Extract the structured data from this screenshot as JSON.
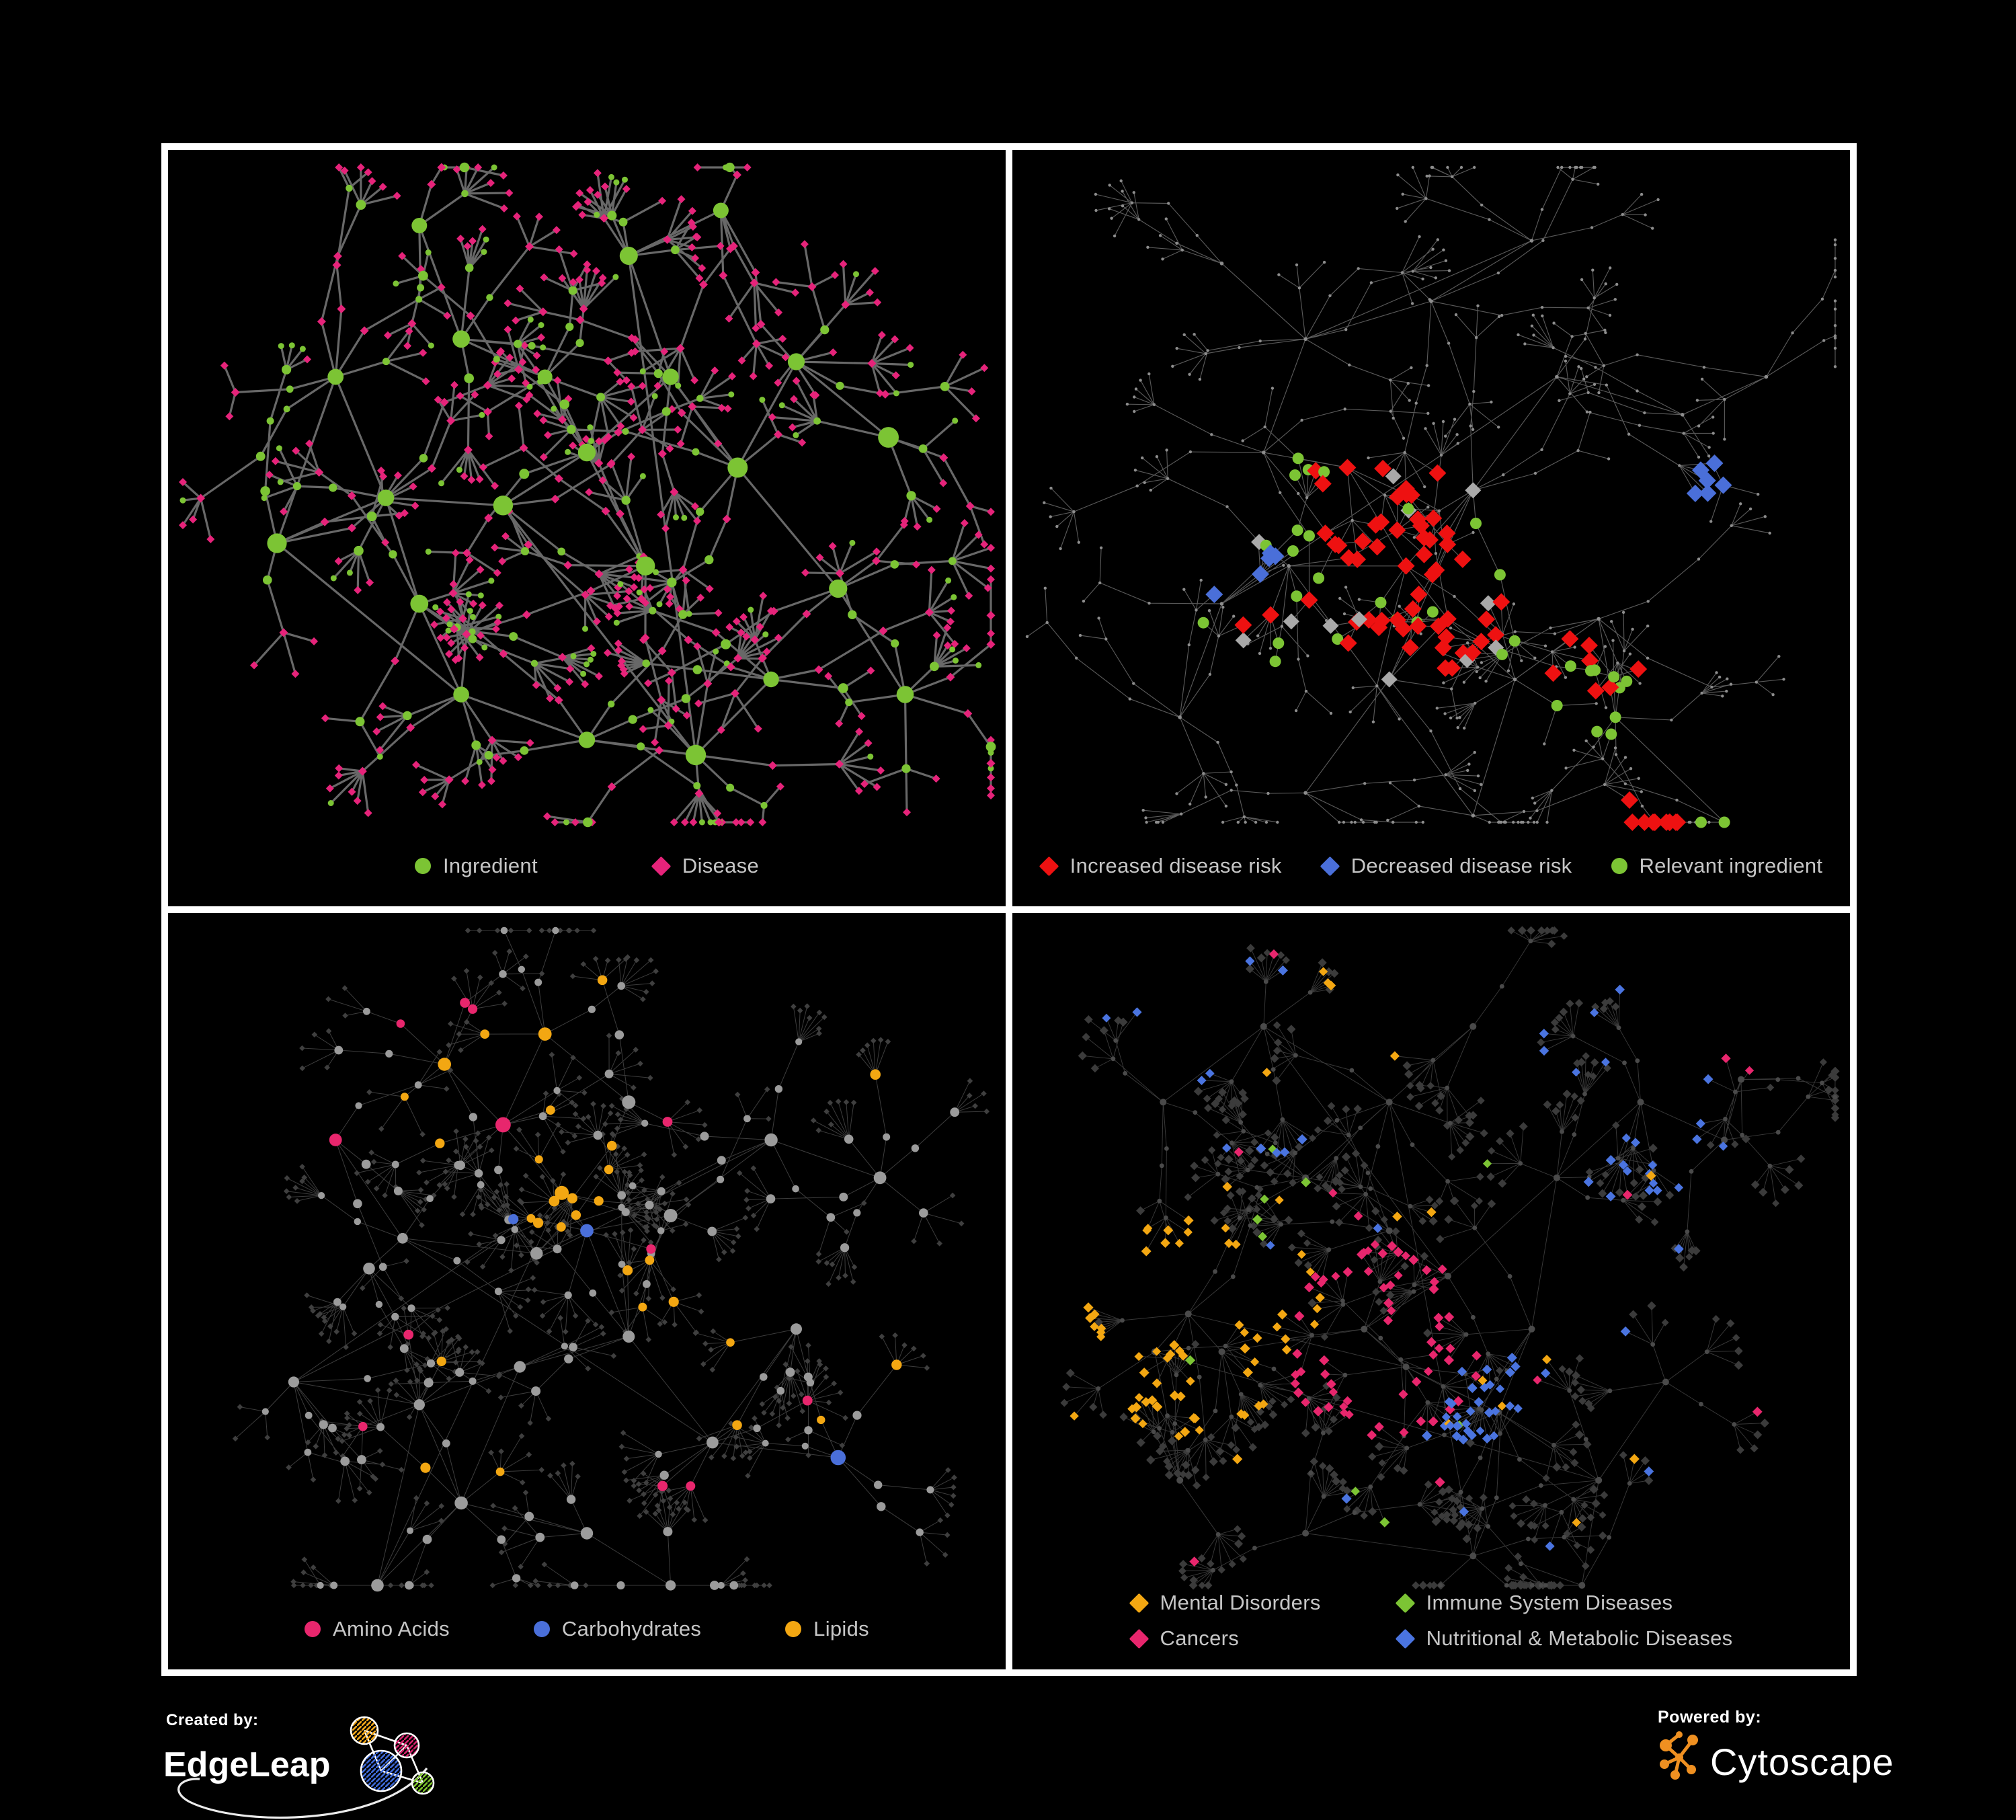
{
  "page": {
    "background": "#000000",
    "panel_border": "#ffffff",
    "legend_text_color": "#c6c6c6"
  },
  "panels": [
    {
      "id": "ingredient-disease",
      "legend": [
        {
          "label": "Ingredient",
          "shape": "circle",
          "color": "#7cc434"
        },
        {
          "label": "Disease",
          "shape": "diamond",
          "color": "#e6237a"
        }
      ],
      "net": {
        "seed": 11,
        "theme": "p1",
        "extra": 5,
        "branches": [
          3,
          6
        ],
        "steps": [
          1,
          3
        ],
        "fan": [
          2,
          7
        ],
        "stepLen": [
          50,
          120
        ],
        "leafLen": [
          32,
          68
        ],
        "hubs": [
          [
            0.26,
            0.46
          ],
          [
            0.4,
            0.47
          ],
          [
            0.5,
            0.4
          ],
          [
            0.57,
            0.55
          ],
          [
            0.45,
            0.3
          ],
          [
            0.35,
            0.25
          ],
          [
            0.6,
            0.3
          ],
          [
            0.68,
            0.42
          ],
          [
            0.3,
            0.6
          ],
          [
            0.35,
            0.72
          ],
          [
            0.5,
            0.78
          ],
          [
            0.63,
            0.8
          ],
          [
            0.2,
            0.3
          ],
          [
            0.13,
            0.52
          ],
          [
            0.75,
            0.28
          ],
          [
            0.86,
            0.38
          ],
          [
            0.8,
            0.58
          ],
          [
            0.72,
            0.7
          ],
          [
            0.55,
            0.14
          ],
          [
            0.3,
            0.1
          ],
          [
            0.66,
            0.08
          ],
          [
            0.88,
            0.72
          ]
        ],
        "style": {
          "edge": "#7a7a7a",
          "edgeW": 3.2,
          "edgeOp": 0.85,
          "circle": "#7cc434",
          "diamond": "#e6237a"
        },
        "highlights": []
      }
    },
    {
      "id": "disease-risk",
      "legend": [
        {
          "label": "Increased disease risk",
          "shape": "diamond",
          "color": "#ee1111"
        },
        {
          "label": "Decreased disease risk",
          "shape": "diamond",
          "color": "#4a6fd9"
        },
        {
          "label": "Relevant ingredient",
          "shape": "circle",
          "color": "#7cc434"
        }
      ],
      "net": {
        "seed": 23,
        "theme": "p2",
        "extra": 5,
        "branches": [
          3,
          6
        ],
        "steps": [
          1,
          3
        ],
        "fan": [
          2,
          6
        ],
        "stepLen": [
          45,
          110
        ],
        "leafLen": [
          30,
          60
        ],
        "hubs": [
          [
            0.33,
            0.55
          ],
          [
            0.47,
            0.55
          ],
          [
            0.52,
            0.62
          ],
          [
            0.4,
            0.42
          ],
          [
            0.55,
            0.45
          ],
          [
            0.3,
            0.4
          ],
          [
            0.25,
            0.6
          ],
          [
            0.45,
            0.7
          ],
          [
            0.6,
            0.7
          ],
          [
            0.7,
            0.62
          ],
          [
            0.72,
            0.75
          ],
          [
            0.35,
            0.25
          ],
          [
            0.5,
            0.2
          ],
          [
            0.65,
            0.3
          ],
          [
            0.8,
            0.35
          ],
          [
            0.9,
            0.3
          ],
          [
            0.2,
            0.75
          ],
          [
            0.35,
            0.85
          ],
          [
            0.55,
            0.88
          ],
          [
            0.85,
            0.9
          ],
          [
            0.62,
            0.12
          ],
          [
            0.25,
            0.15
          ]
        ],
        "style": {
          "edge": "#6f6f6f",
          "edgeW": 1.15,
          "edgeOp": 0.8,
          "base": "#8d8d8d"
        },
        "highlights": [
          {
            "shape": "diamond",
            "color": "#ee1111",
            "size": 13,
            "zones": [
              [
                0.47,
                0.56,
                0.13,
                0.45
              ],
              [
                0.3,
                0.56,
                0.07,
                0.3
              ],
              [
                0.71,
                0.62,
                0.1,
                0.28
              ],
              [
                0.73,
                0.92,
                0.07,
                0.45
              ],
              [
                0.39,
                0.42,
                0.03,
                0.8
              ]
            ]
          },
          {
            "shape": "diamond",
            "color": "#4a6fd9",
            "size": 13,
            "zones": [
              [
                0.285,
                0.58,
                0.05,
                0.75
              ],
              [
                0.83,
                0.44,
                0.028,
                1.0
              ]
            ]
          },
          {
            "shape": "diamond",
            "color": "#a9a9a9",
            "size": 12,
            "zones": [
              [
                0.5,
                0.62,
                0.24,
                0.05
              ],
              [
                0.3,
                0.62,
                0.12,
                0.08
              ]
            ]
          },
          {
            "shape": "circle",
            "color": "#7cc434",
            "size": 8.5,
            "zones": [
              [
                0.33,
                0.55,
                0.13,
                0.28
              ],
              [
                0.52,
                0.57,
                0.12,
                0.28
              ],
              [
                0.7,
                0.72,
                0.06,
                0.5
              ],
              [
                0.85,
                0.92,
                0.06,
                0.5
              ],
              [
                0.3,
                0.47,
                0.1,
                0.2
              ]
            ]
          }
        ]
      }
    },
    {
      "id": "ingredient-classes",
      "legend": [
        {
          "label": "Amino Acids",
          "shape": "circle",
          "color": "#e8266d"
        },
        {
          "label": "Carbohydrates",
          "shape": "circle",
          "color": "#4a6fd9"
        },
        {
          "label": "Lipids",
          "shape": "circle",
          "color": "#f3a712"
        }
      ],
      "net": {
        "seed": 37,
        "theme": "p3",
        "extra": 6,
        "branches": [
          3,
          6
        ],
        "steps": [
          1,
          2
        ],
        "fan": [
          3,
          8
        ],
        "stepLen": [
          50,
          110
        ],
        "leafLen": [
          30,
          62
        ],
        "hubs": [
          [
            0.28,
            0.43
          ],
          [
            0.24,
            0.47
          ],
          [
            0.44,
            0.45
          ],
          [
            0.5,
            0.42
          ],
          [
            0.47,
            0.37
          ],
          [
            0.4,
            0.28
          ],
          [
            0.33,
            0.2
          ],
          [
            0.45,
            0.16
          ],
          [
            0.55,
            0.25
          ],
          [
            0.6,
            0.4
          ],
          [
            0.55,
            0.56
          ],
          [
            0.42,
            0.6
          ],
          [
            0.3,
            0.65
          ],
          [
            0.2,
            0.3
          ],
          [
            0.15,
            0.62
          ],
          [
            0.35,
            0.78
          ],
          [
            0.5,
            0.82
          ],
          [
            0.65,
            0.7
          ],
          [
            0.75,
            0.55
          ],
          [
            0.72,
            0.3
          ],
          [
            0.85,
            0.35
          ],
          [
            0.8,
            0.72
          ],
          [
            0.6,
            0.92
          ],
          [
            0.25,
            0.9
          ]
        ],
        "style": {
          "edge": "#919191",
          "edgeW": 1.0,
          "edgeOp": 0.42,
          "circle": "#9b9b9b",
          "diamond": "#3f3f3f"
        },
        "highlights": [
          {
            "applyTo": "circle",
            "color": "#f3a712",
            "zones": [
              [
                0.47,
                0.37,
                0.065,
                0.95
              ],
              [
                0.42,
                0.2,
                0.16,
                0.3
              ],
              [
                0.45,
                0.5,
                0.13,
                0.3
              ],
              [
                0.62,
                0.55,
                0.1,
                0.35
              ],
              [
                0.5,
                0.5,
                0.5,
                0.035
              ]
            ]
          },
          {
            "applyTo": "circle",
            "color": "#4a6fd9",
            "zones": [
              [
                0.48,
                0.39,
                0.08,
                0.3
              ],
              [
                0.5,
                0.5,
                0.5,
                0.02
              ]
            ]
          },
          {
            "applyTo": "circle",
            "color": "#e8266d",
            "zones": [
              [
                0.5,
                0.5,
                0.55,
                0.05
              ]
            ]
          }
        ]
      }
    },
    {
      "id": "disease-classes",
      "legend": [
        {
          "label": "Mental Disorders",
          "shape": "diamond",
          "color": "#f3a712"
        },
        {
          "label": "Immune System Diseases",
          "shape": "diamond",
          "color": "#7cc434"
        },
        {
          "label": "Cancers",
          "shape": "diamond",
          "color": "#e8266d"
        },
        {
          "label": "Nutritional & Metabolic Diseases",
          "shape": "diamond",
          "color": "#4a74e0"
        }
      ],
      "net": {
        "seed": 49,
        "theme": "p4",
        "extra": 6,
        "branches": [
          3,
          6
        ],
        "steps": [
          1,
          2
        ],
        "fan": [
          4,
          9
        ],
        "stepLen": [
          48,
          105
        ],
        "leafLen": [
          28,
          58
        ],
        "hubs": [
          [
            0.21,
            0.53
          ],
          [
            0.25,
            0.58
          ],
          [
            0.17,
            0.58
          ],
          [
            0.42,
            0.55
          ],
          [
            0.47,
            0.6
          ],
          [
            0.52,
            0.48
          ],
          [
            0.45,
            0.42
          ],
          [
            0.58,
            0.66
          ],
          [
            0.62,
            0.55
          ],
          [
            0.35,
            0.35
          ],
          [
            0.45,
            0.25
          ],
          [
            0.55,
            0.15
          ],
          [
            0.3,
            0.15
          ],
          [
            0.18,
            0.25
          ],
          [
            0.65,
            0.35
          ],
          [
            0.75,
            0.25
          ],
          [
            0.85,
            0.3
          ],
          [
            0.87,
            0.22
          ],
          [
            0.7,
            0.75
          ],
          [
            0.78,
            0.62
          ],
          [
            0.55,
            0.85
          ],
          [
            0.35,
            0.82
          ],
          [
            0.2,
            0.75
          ],
          [
            0.68,
            0.9
          ]
        ],
        "style": {
          "edge": "#8e8e8e",
          "edgeW": 0.95,
          "edgeOp": 0.4,
          "circle": "#4a4a4a",
          "diamond": "#3b3b3b"
        },
        "highlights": [
          {
            "applyTo": "diamond",
            "color": "#f3a712",
            "zones": [
              [
                0.21,
                0.55,
                0.13,
                0.92
              ],
              [
                0.38,
                0.14,
                0.1,
                0.25
              ],
              [
                0.5,
                0.5,
                0.5,
                0.02
              ]
            ]
          },
          {
            "applyTo": "diamond",
            "color": "#e8266d",
            "zones": [
              [
                0.44,
                0.57,
                0.12,
                0.75
              ],
              [
                0.87,
                0.21,
                0.06,
                0.7
              ],
              [
                0.5,
                0.5,
                0.5,
                0.02
              ]
            ]
          },
          {
            "applyTo": "diamond",
            "color": "#4a74e0",
            "zones": [
              [
                0.58,
                0.66,
                0.09,
                0.8
              ],
              [
                0.75,
                0.26,
                0.15,
                0.4
              ],
              [
                0.22,
                0.1,
                0.12,
                0.35
              ],
              [
                0.5,
                0.5,
                0.5,
                0.03
              ]
            ]
          },
          {
            "applyTo": "diamond",
            "color": "#7cc434",
            "zones": [
              [
                0.45,
                0.5,
                0.28,
                0.05
              ]
            ]
          }
        ]
      }
    }
  ],
  "footer": {
    "created_by_label": "Created by:",
    "edgeleap_name": "EdgeLeap",
    "powered_by_label": "Powered by:",
    "cytoscape_name": "Cytoscape",
    "edgeleap_logo_colors": {
      "orange": "#f0a61a",
      "magenta": "#d6246e",
      "blue": "#3f6ad8",
      "green": "#7cc32b"
    },
    "cytoscape_logo_color": "#ef9021"
  }
}
